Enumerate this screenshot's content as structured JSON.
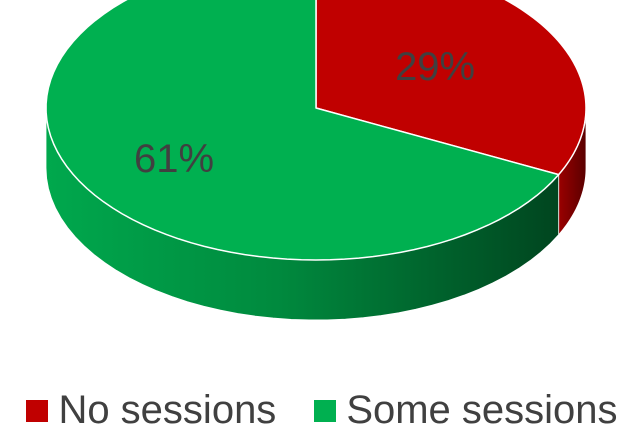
{
  "chart_data": {
    "type": "pie",
    "style": "3d",
    "slices": [
      {
        "label": "No sessions",
        "value": 29,
        "display": "29%",
        "color": "#c00000"
      },
      {
        "label": "Some sessions",
        "value": 61,
        "display": "61%",
        "color": "#00b050"
      }
    ],
    "legend_position": "bottom",
    "colors": {
      "text": "#404040"
    }
  }
}
